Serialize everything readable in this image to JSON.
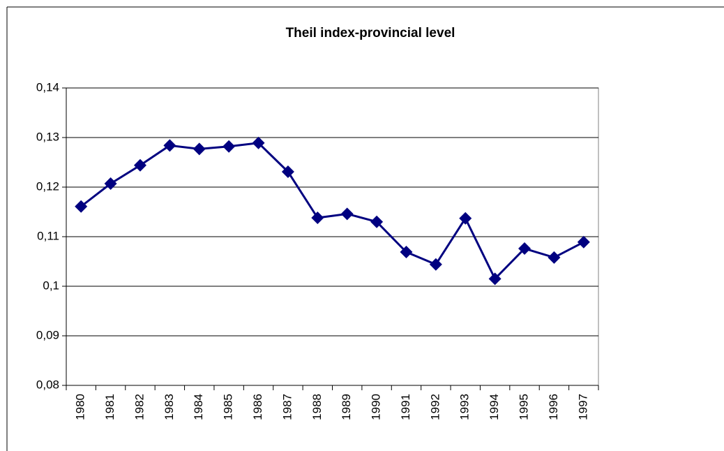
{
  "chart_data": {
    "type": "line",
    "title": "Theil index-provincial level",
    "categories": [
      "1980",
      "1981",
      "1982",
      "1983",
      "1984",
      "1985",
      "1986",
      "1987",
      "1988",
      "1989",
      "1990",
      "1991",
      "1992",
      "1993",
      "1994",
      "1995",
      "1996",
      "1997"
    ],
    "values": [
      0.1161,
      0.1207,
      0.1244,
      0.1284,
      0.1277,
      0.1282,
      0.1289,
      0.1231,
      0.1138,
      0.1146,
      0.113,
      0.1069,
      0.1044,
      0.1137,
      0.1015,
      0.1076,
      0.1058,
      0.1089
    ],
    "color": "#000080",
    "ylim": [
      0.08,
      0.14
    ],
    "yticks": [
      {
        "value": 0.08,
        "label": "0,08"
      },
      {
        "value": 0.09,
        "label": "0,09"
      },
      {
        "value": 0.1,
        "label": "0,1"
      },
      {
        "value": 0.11,
        "label": "0,11"
      },
      {
        "value": 0.12,
        "label": "0,12"
      },
      {
        "value": 0.13,
        "label": "0,13"
      },
      {
        "value": 0.14,
        "label": "0,14"
      }
    ],
    "grid": true
  }
}
